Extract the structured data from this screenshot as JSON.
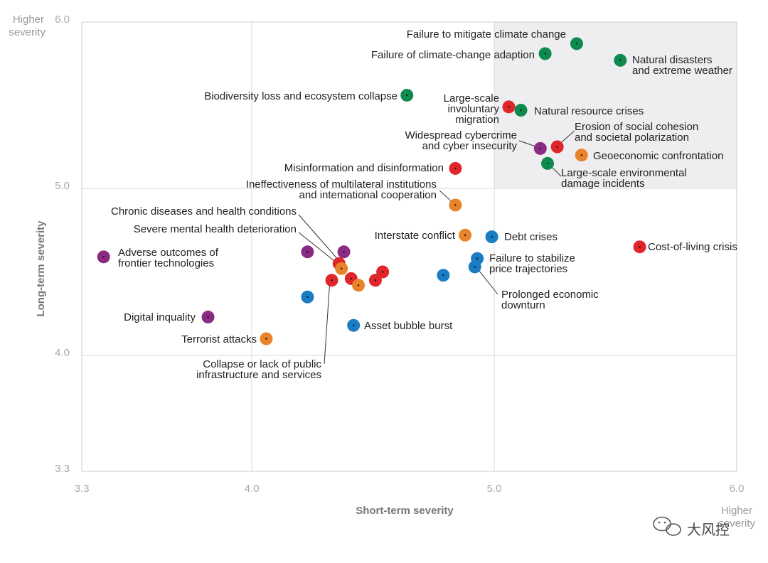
{
  "chart_data": {
    "type": "scatter",
    "title": "",
    "xlabel": "Short-term severity",
    "ylabel": "Long-term severity",
    "xlim": [
      3.3,
      6.0
    ],
    "ylim": [
      3.3,
      6.0
    ],
    "x_ticks": [
      "3.3",
      "4.0",
      "5.0",
      "6.0"
    ],
    "y_ticks": [
      "3.3",
      "4.0",
      "5.0",
      "6.0"
    ],
    "x_corner_label": [
      "Higher",
      "severity"
    ],
    "y_corner_label": [
      "Higher",
      "severity"
    ],
    "highlight_region": {
      "x": [
        5.0,
        6.0
      ],
      "y": [
        5.0,
        6.0
      ]
    },
    "grid": true,
    "categories": {
      "economic": "#1a7dc4",
      "environmental": "#0e8a4e",
      "geopolitical": "#e8832a",
      "societal": "#e0262b",
      "technological": "#8b2a82"
    },
    "points": [
      {
        "label": "Failure to mitigate climate change",
        "lines": [
          "Failure to mitigate climate change"
        ],
        "category": "environmental",
        "x": 5.34,
        "y": 5.87
      },
      {
        "label": "Failure of climate-change adaption",
        "lines": [
          "Failure of climate-change adaption"
        ],
        "category": "environmental",
        "x": 5.21,
        "y": 5.81
      },
      {
        "label": "Natural disasters and extreme weather",
        "lines": [
          "Natural disasters",
          "and extreme weather"
        ],
        "category": "environmental",
        "x": 5.52,
        "y": 5.77
      },
      {
        "label": "Biodiversity loss and ecosystem collapse",
        "lines": [
          "Biodiversity loss and ecosystem collapse"
        ],
        "category": "environmental",
        "x": 4.64,
        "y": 5.56
      },
      {
        "label": "Large-scale involuntary migration",
        "lines": [
          "Large-scale",
          "involuntary",
          "migration"
        ],
        "category": "societal",
        "x": 5.06,
        "y": 5.49
      },
      {
        "label": "Natural resource crises",
        "lines": [
          "Natural resource crises"
        ],
        "category": "environmental",
        "x": 5.11,
        "y": 5.47
      },
      {
        "label": "Erosion of social cohesion and societal polarization",
        "lines": [
          "Erosion of social cohesion",
          "and societal polarization"
        ],
        "category": "societal",
        "x": 5.26,
        "y": 5.25
      },
      {
        "label": "Widespread cybercrime and cyber insecurity",
        "lines": [
          "Widespread cybercrime",
          "and cyber insecurity"
        ],
        "category": "technological",
        "x": 5.19,
        "y": 5.24
      },
      {
        "label": "Geoeconomic confrontation",
        "lines": [
          "Geoeconomic confrontation"
        ],
        "category": "geopolitical",
        "x": 5.36,
        "y": 5.2
      },
      {
        "label": "Large-scale environmental damage incidents",
        "lines": [
          "Large-scale environmental",
          "damage incidents"
        ],
        "category": "environmental",
        "x": 5.22,
        "y": 5.15
      },
      {
        "label": "Misinformation and disinformation",
        "lines": [
          "Misinformation and disinformation"
        ],
        "category": "societal",
        "x": 4.84,
        "y": 5.12
      },
      {
        "label": "Ineffectiveness of multilateral institutions and international cooperation",
        "lines": [
          "Ineffectiveness of multilateral institutions",
          "and international cooperation"
        ],
        "category": "geopolitical",
        "x": 4.84,
        "y": 4.9
      },
      {
        "label": "Interstate conflict",
        "lines": [
          "Interstate conflict"
        ],
        "category": "geopolitical",
        "x": 4.88,
        "y": 4.72
      },
      {
        "label": "Debt crises",
        "lines": [
          "Debt crises"
        ],
        "category": "economic",
        "x": 4.99,
        "y": 4.71
      },
      {
        "label": "Cost-of-living crisis",
        "lines": [
          "Cost-of-living crisis"
        ],
        "category": "societal",
        "x": 5.6,
        "y": 4.65
      },
      {
        "label": "Failure to stabilize price trajectories",
        "lines": [
          "Failure to stabilize",
          "price trajectories"
        ],
        "category": "economic",
        "x": 4.93,
        "y": 4.58
      },
      {
        "label": "Prolonged economic downturn",
        "lines": [
          "Prolonged economic",
          "downturn"
        ],
        "category": "economic",
        "x": 4.92,
        "y": 4.53
      },
      {
        "label": "Adverse outcomes of frontier technologies",
        "lines": [
          "Adverse outcomes of",
          "frontier technologies"
        ],
        "category": "technological",
        "x": 3.39,
        "y": 4.59
      },
      {
        "label": "Chronic diseases and health conditions",
        "lines": [
          "Chronic diseases and health conditions"
        ],
        "category": "societal",
        "x": 4.36,
        "y": 4.55
      },
      {
        "label": "Severe mental health deterioration",
        "lines": [
          "Severe mental health deterioration"
        ],
        "category": "geopolitical",
        "x": 4.37,
        "y": 4.52
      },
      {
        "label": "Digital inquality",
        "lines": [
          "Digital inquality"
        ],
        "category": "technological",
        "x": 3.82,
        "y": 4.23
      },
      {
        "label": "Terrorist attacks",
        "lines": [
          "Terrorist attacks"
        ],
        "category": "geopolitical",
        "x": 4.06,
        "y": 4.1
      },
      {
        "label": "Asset bubble burst",
        "lines": [
          "Asset bubble burst"
        ],
        "category": "economic",
        "x": 4.42,
        "y": 4.18
      },
      {
        "label": "Collapse or lack of public infrastructure and services",
        "lines": [
          "Collapse or lack of public",
          "infrastructure and services"
        ],
        "category": "societal",
        "x": 4.33,
        "y": 4.45
      },
      {
        "label": "",
        "lines": [],
        "category": "technological",
        "x": 4.23,
        "y": 4.62
      },
      {
        "label": "",
        "lines": [],
        "category": "technological",
        "x": 4.38,
        "y": 4.62
      },
      {
        "label": "",
        "lines": [],
        "category": "economic",
        "x": 4.23,
        "y": 4.35
      },
      {
        "label": "",
        "lines": [],
        "category": "societal",
        "x": 4.41,
        "y": 4.46
      },
      {
        "label": "",
        "lines": [],
        "category": "geopolitical",
        "x": 4.44,
        "y": 4.42
      },
      {
        "label": "",
        "lines": [],
        "category": "societal",
        "x": 4.51,
        "y": 4.45
      },
      {
        "label": "",
        "lines": [],
        "category": "societal",
        "x": 4.54,
        "y": 4.5
      },
      {
        "label": "",
        "lines": [],
        "category": "economic",
        "x": 4.79,
        "y": 4.48
      }
    ]
  },
  "watermark": "大风控"
}
